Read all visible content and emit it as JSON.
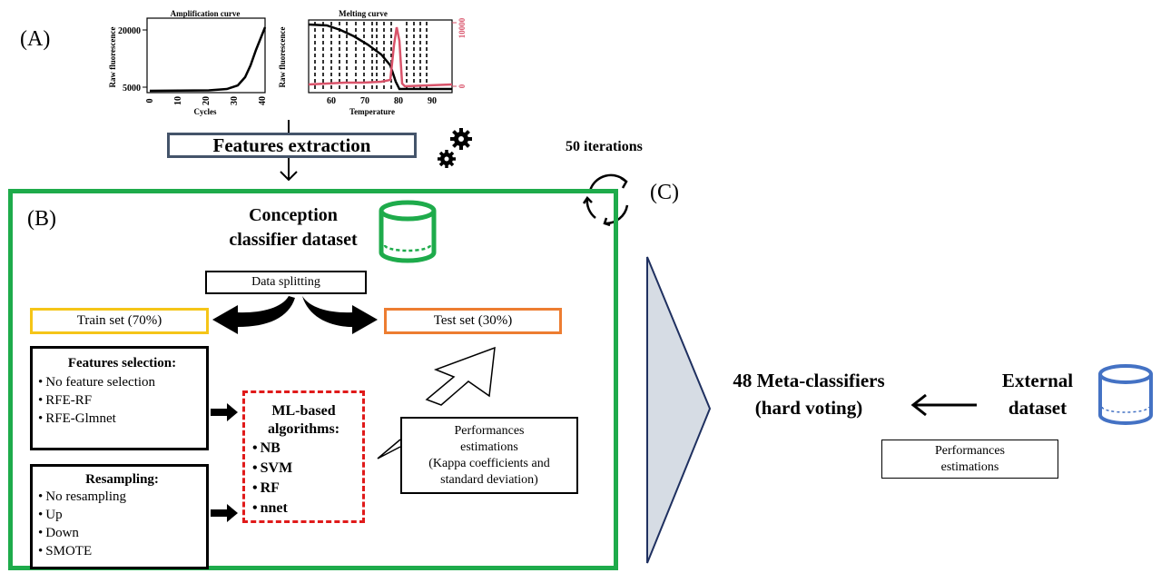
{
  "labels": {
    "a": "(A)",
    "b": "(B)",
    "c": "(C)"
  },
  "amplification": {
    "title": "Amplification curve",
    "ylabel": "Raw fluorescence",
    "xlabel": "Cycles",
    "yticks": [
      "20000",
      "5000"
    ],
    "xticks": [
      "0",
      "10",
      "20",
      "30",
      "40"
    ]
  },
  "melting": {
    "title": "Melting curve",
    "ylabel": "Raw fluorescence",
    "right_tick_top": "10000",
    "right_tick_bottom": "0",
    "xlabel": "Temperature",
    "xticks": [
      "60",
      "70",
      "80",
      "90"
    ],
    "right_axis_color": "#d9536a"
  },
  "features_extraction": "Features extraction",
  "iterations": "50 iterations",
  "conception_title_line1": "Conception",
  "conception_title_line2": "classifier dataset",
  "data_splitting": "Data splitting",
  "train_set": "Train set (70%)",
  "test_set": "Test set (30%)",
  "features_selection": {
    "title": "Features selection:",
    "items": [
      "No feature selection",
      "RFE-RF",
      "RFE-Glmnet"
    ]
  },
  "resampling": {
    "title": "Resampling:",
    "items": [
      "No resampling",
      "Up",
      "Down",
      "SMOTE"
    ]
  },
  "ml_algorithms": {
    "title_line1": "ML-based",
    "title_line2": "algorithms:",
    "items": [
      "NB",
      "SVM",
      "RF",
      "nnet"
    ]
  },
  "performances_inner": {
    "line1": "Performances",
    "line2": "estimations",
    "line3": "(Kappa coefficients and",
    "line4": "standard deviation)"
  },
  "meta_classifiers_line1": "48 Meta-classifiers",
  "meta_classifiers_line2": "(hard voting)",
  "external_line1": "External",
  "external_line2": "dataset",
  "performances_outer_line1": "Performances",
  "performances_outer_line2": "estimations",
  "colors": {
    "green": "#1eab4b",
    "yellow": "#f5c518",
    "orange": "#ed7d31",
    "blue_db": "#4472c4",
    "slate": "#44546a",
    "red_dash": "#e01a1a",
    "navy": "#1f3060",
    "triangle_fill": "#d6dce4"
  }
}
